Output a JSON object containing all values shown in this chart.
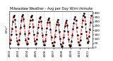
{
  "title": "Milwaukee Weather - Avg per Day W/m²/minute",
  "line_color": "#ff0000",
  "marker_color": "#000000",
  "bg_color": "#ffffff",
  "plot_bg_color": "#ffffff",
  "grid_color": "#bbbbbb",
  "ylim": [
    0,
    420
  ],
  "ytick_labels": [
    "0",
    "50",
    "100",
    "150",
    "200",
    "250",
    "300",
    "350",
    "400"
  ],
  "ytick_values": [
    0,
    50,
    100,
    150,
    200,
    250,
    300,
    350,
    400
  ],
  "values": [
    45,
    85,
    150,
    220,
    300,
    350,
    370,
    320,
    240,
    150,
    80,
    40,
    40,
    90,
    160,
    230,
    310,
    360,
    380,
    330,
    250,
    160,
    85,
    42,
    50,
    100,
    170,
    240,
    310,
    355,
    370,
    320,
    240,
    155,
    80,
    38,
    45,
    95,
    165,
    235,
    295,
    335,
    355,
    305,
    225,
    140,
    70,
    32,
    35,
    80,
    155,
    225,
    285,
    320,
    340,
    285,
    210,
    120,
    55,
    25,
    20,
    60,
    130,
    200,
    265,
    300,
    320,
    265,
    185,
    100,
    40,
    15,
    15,
    55,
    120,
    190,
    250,
    290,
    310,
    260,
    180,
    95,
    35,
    12,
    20,
    70,
    140,
    215,
    280,
    330,
    355,
    310,
    230,
    140,
    65,
    28,
    35,
    90,
    160,
    240,
    310,
    370,
    395,
    355,
    275,
    185,
    110,
    55,
    70,
    130,
    210,
    290,
    370
  ],
  "n_per_year": 12,
  "start_year": 2002,
  "line_width": 0.7,
  "marker_size": 1.5,
  "linestyle": "--",
  "title_fontsize": 3.5,
  "tick_fontsize": 3.0,
  "left_label": "W/m²"
}
